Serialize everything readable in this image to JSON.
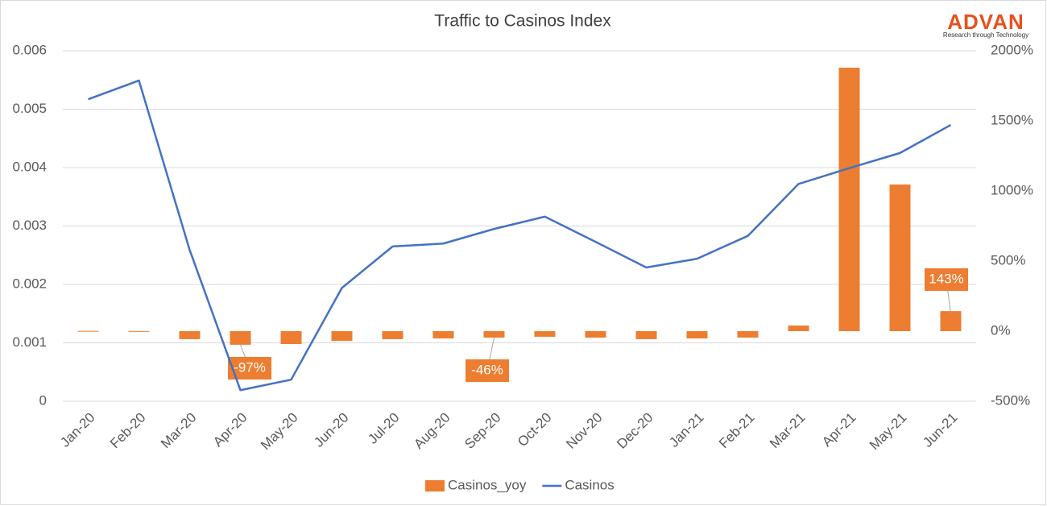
{
  "chart_data": {
    "type": "bar-line",
    "title": "Traffic to Casinos Index",
    "logo": "ADVAN",
    "logo_tagline": "Research through Technology",
    "categories": [
      "Jan-20",
      "Feb-20",
      "Mar-20",
      "Apr-20",
      "May-20",
      "Jun-20",
      "Jul-20",
      "Aug-20",
      "Sep-20",
      "Oct-20",
      "Nov-20",
      "Dec-20",
      "Jan-21",
      "Feb-21",
      "Mar-21",
      "Apr-21",
      "May-21",
      "Jun-21"
    ],
    "series": [
      {
        "name": "Casinos_yoy",
        "type": "bar",
        "axis": "y2",
        "color": "#ed7d31",
        "values": [
          2,
          1,
          -57,
          -97,
          -92,
          -69,
          -57,
          -52,
          -46,
          -40,
          -46,
          -57,
          -52,
          -46,
          40,
          1879,
          1046,
          143
        ],
        "value_labels": [
          null,
          null,
          null,
          "-97%",
          null,
          null,
          null,
          null,
          "-46%",
          null,
          null,
          null,
          null,
          null,
          null,
          null,
          null,
          "143%"
        ]
      },
      {
        "name": "Casinos",
        "type": "line",
        "axis": "y",
        "color": "#4472c4",
        "values": [
          0.00517,
          0.00549,
          0.00259,
          0.00019,
          0.00037,
          0.00194,
          0.00265,
          0.0027,
          0.00295,
          0.00316,
          0.00273,
          0.00229,
          0.00244,
          0.00283,
          0.00372,
          0.00399,
          0.00425,
          0.00473
        ]
      }
    ],
    "ylim": [
      0,
      0.006
    ],
    "yticks": [
      0,
      0.001,
      0.002,
      0.003,
      0.004,
      0.005,
      0.006
    ],
    "y2lim": [
      -500,
      2000
    ],
    "y2ticks": [
      {
        "value": -500,
        "label": "-500%"
      },
      {
        "value": 0,
        "label": "0%"
      },
      {
        "value": 500,
        "label": "500%"
      },
      {
        "value": 1000,
        "label": "1000%"
      },
      {
        "value": 1500,
        "label": "1500%"
      },
      {
        "value": 2000,
        "label": "2000%"
      }
    ],
    "grid": true,
    "legend": "bottom"
  }
}
